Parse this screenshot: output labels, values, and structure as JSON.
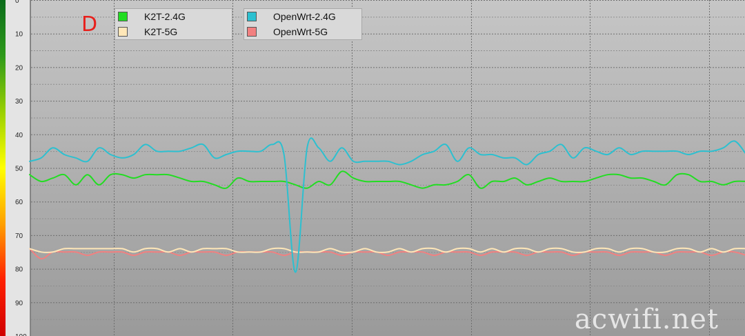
{
  "panel_label": "D",
  "watermark": "acwifi.net",
  "colors": {
    "background_top": "#c6c6c6",
    "background_bottom": "#9a9a9a",
    "grid_major": "#6e6e6e",
    "grid_minor": "#8e8e8e",
    "axis_text": "#222222",
    "signal_bar": [
      "#0a6b1a",
      "#2e9a1a",
      "#9ad000",
      "#ffff00",
      "#ffa000",
      "#ff2000",
      "#d00000"
    ]
  },
  "chart_data": {
    "type": "line",
    "title": "",
    "xlabel": "",
    "ylabel": "",
    "y_inverted": true,
    "ylim": [
      0,
      100
    ],
    "y_ticks": [
      0,
      10,
      20,
      30,
      40,
      50,
      60,
      70,
      80,
      90,
      100
    ],
    "grid": true,
    "legend_position": "top-left",
    "x": [
      0,
      1,
      2,
      3,
      4,
      5,
      6,
      7,
      8,
      9,
      10,
      11,
      12,
      13,
      14,
      15,
      16,
      17,
      18,
      19,
      20,
      21,
      22,
      23,
      24,
      25,
      26,
      27,
      28,
      29,
      30,
      31,
      32,
      33,
      34,
      35,
      36,
      37,
      38,
      39,
      40,
      41,
      42,
      43,
      44,
      45,
      46,
      47,
      48,
      49,
      50,
      51,
      52,
      53,
      54,
      55,
      56,
      57,
      58,
      59,
      60,
      61,
      62
    ],
    "series": [
      {
        "name": "K2T-2.4G",
        "color": "#22dd22",
        "values": [
          52,
          54,
          53,
          52,
          55,
          52,
          55,
          52,
          52,
          53,
          52,
          52,
          52,
          53,
          54,
          54,
          55,
          56,
          53,
          54,
          54,
          54,
          54,
          55,
          56,
          54,
          55,
          51,
          53,
          54,
          54,
          54,
          54,
          55,
          56,
          55,
          55,
          54,
          52,
          56,
          54,
          54,
          53,
          55,
          54,
          53,
          54,
          54,
          54,
          53,
          52,
          52,
          53,
          53,
          54,
          55,
          52,
          52,
          54,
          54,
          55,
          54,
          54
        ]
      },
      {
        "name": "OpenWrt-2.4G",
        "color": "#2cc0d0",
        "values": [
          48,
          47,
          44,
          46,
          47,
          48,
          44,
          46,
          47,
          46,
          43,
          45,
          45,
          45,
          44,
          43,
          47,
          46,
          45,
          45,
          45,
          43,
          46,
          81,
          44,
          44,
          48,
          44,
          48,
          48,
          48,
          48,
          49,
          48,
          46,
          45,
          43,
          48,
          44,
          46,
          46,
          47,
          47,
          49,
          46,
          45,
          43,
          47,
          44,
          45,
          46,
          44,
          46,
          45,
          45,
          45,
          45,
          46,
          45,
          45,
          44,
          42,
          46
        ]
      },
      {
        "name": "K2T-5G",
        "color": "#ffe7b8",
        "values": [
          74,
          75,
          75,
          74,
          74,
          74,
          74,
          74,
          74,
          75,
          74,
          74,
          75,
          74,
          75,
          74,
          74,
          74,
          75,
          75,
          75,
          74,
          74,
          75,
          75,
          75,
          74,
          75,
          75,
          74,
          75,
          75,
          74,
          75,
          74,
          74,
          75,
          74,
          74,
          75,
          74,
          75,
          74,
          74,
          75,
          74,
          74,
          75,
          75,
          74,
          74,
          75,
          74,
          74,
          75,
          75,
          74,
          74,
          75,
          74,
          75,
          74,
          74
        ]
      },
      {
        "name": "OpenWrt-5G",
        "color": "#f28080",
        "values": [
          74,
          77,
          75,
          75,
          75,
          76,
          75,
          75,
          75,
          76,
          75,
          75,
          75,
          76,
          75,
          75,
          75,
          76,
          75,
          75,
          75,
          75,
          76,
          75,
          75,
          75,
          75,
          76,
          75,
          75,
          75,
          76,
          75,
          75,
          75,
          76,
          75,
          75,
          75,
          76,
          75,
          75,
          75,
          76,
          75,
          75,
          75,
          76,
          75,
          75,
          75,
          76,
          75,
          75,
          75,
          76,
          75,
          75,
          75,
          76,
          75,
          75,
          76
        ]
      }
    ]
  }
}
